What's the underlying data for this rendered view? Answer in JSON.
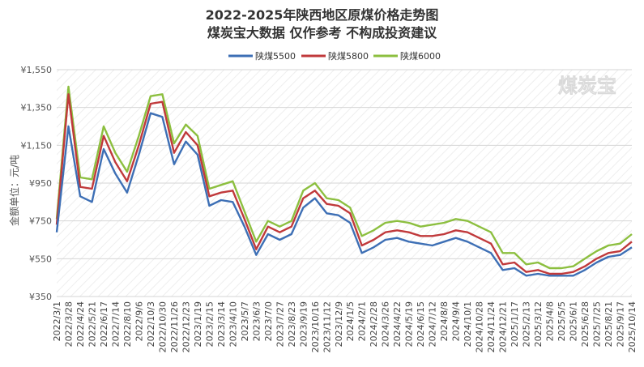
{
  "chart_data": {
    "type": "line",
    "title": "2022-2025年陕西地区原煤价格走势图",
    "subtitle": "煤炭宝大数据 仅作参考 不构成投资建议",
    "watermark": "煤炭宝",
    "ylabel": "金额单位：元/吨",
    "xlabel": "",
    "ylim": [
      350,
      1550
    ],
    "y_ticks": [
      350,
      550,
      750,
      950,
      1150,
      1350,
      1550
    ],
    "y_tick_labels": [
      "¥350",
      "¥550",
      "¥750",
      "¥950",
      "¥1,150",
      "¥1,350",
      "¥1,550"
    ],
    "x_tick_labels": [
      "2022/3/1",
      "2022/3/28",
      "2022/4/24",
      "2022/5/21",
      "2022/6/17",
      "2022/7/14",
      "2022/8/10",
      "2022/9/6",
      "2022/10/3",
      "2022/10/30",
      "2022/11/26",
      "2022/12/23",
      "2023/1/19",
      "2023/2/15",
      "2023/3/14",
      "2023/4/10",
      "2023/5/7",
      "2023/6/3",
      "2023/7/0",
      "2023/7/27",
      "2023/8/23",
      "2023/9/19",
      "2023/10/16",
      "2023/11/12",
      "2023/12/9",
      "2024/1/5",
      "2024/2/1",
      "2024/2/28",
      "2024/3/26",
      "2024/4/22",
      "2024/5/19",
      "2024/6/15",
      "2024/7/12",
      "2024/8/8",
      "2024/9/4",
      "2024/10/1",
      "2024/10/28",
      "2024/11/24",
      "2024/12/21",
      "2025/1/17",
      "2025/2/13",
      "2025/3/12",
      "2025/4/8",
      "2025/5/5",
      "2025/6/1",
      "2025/6/28",
      "2025/7/25",
      "2025/8/21",
      "2025/9/17",
      "2025/10/14"
    ],
    "grid": true,
    "legend_position": "top-center",
    "colors": {
      "陕煤5500": "#3d6fb5",
      "陕煤5800": "#c0393b",
      "陕煤6000": "#8cbf3f"
    },
    "x": [
      "2022/3/1",
      "2022/3/28",
      "2022/4/24",
      "2022/5/21",
      "2022/6/17",
      "2022/7/14",
      "2022/8/10",
      "2022/9/6",
      "2022/10/3",
      "2022/10/30",
      "2022/11/26",
      "2022/12/23",
      "2023/1/19",
      "2023/2/15",
      "2023/3/14",
      "2023/4/10",
      "2023/5/7",
      "2023/6/3",
      "2023/7/0",
      "2023/7/27",
      "2023/8/23",
      "2023/9/19",
      "2023/10/16",
      "2023/11/12",
      "2023/12/9",
      "2024/1/5",
      "2024/2/1",
      "2024/2/28",
      "2024/3/26",
      "2024/4/22",
      "2024/5/19",
      "2024/6/15",
      "2024/7/12",
      "2024/8/8",
      "2024/9/4",
      "2024/10/1",
      "2024/10/28",
      "2024/11/24",
      "2024/12/21",
      "2025/1/17",
      "2025/2/13",
      "2025/3/12",
      "2025/4/8",
      "2025/5/5",
      "2025/6/1",
      "2025/6/28",
      "2025/7/25",
      "2025/8/21",
      "2025/9/17",
      "2025/10/14"
    ],
    "series": [
      {
        "name": "陕煤5500",
        "values": [
          690,
          1250,
          880,
          850,
          1130,
          1000,
          900,
          1100,
          1320,
          1300,
          1050,
          1170,
          1100,
          830,
          860,
          850,
          720,
          570,
          680,
          650,
          680,
          820,
          870,
          790,
          780,
          740,
          580,
          610,
          650,
          660,
          640,
          630,
          620,
          640,
          660,
          640,
          610,
          580,
          490,
          500,
          460,
          470,
          460,
          460,
          460,
          490,
          530,
          560,
          570,
          610
        ]
      },
      {
        "name": "陕煤5800",
        "values": [
          730,
          1420,
          930,
          920,
          1200,
          1060,
          960,
          1150,
          1370,
          1380,
          1110,
          1220,
          1150,
          880,
          900,
          910,
          760,
          600,
          720,
          690,
          720,
          870,
          910,
          840,
          830,
          790,
          620,
          650,
          690,
          700,
          690,
          670,
          670,
          680,
          700,
          690,
          660,
          630,
          520,
          530,
          480,
          490,
          470,
          470,
          480,
          510,
          550,
          580,
          590,
          640
        ]
      },
      {
        "name": "陕煤6000",
        "values": [
          760,
          1460,
          980,
          970,
          1250,
          1110,
          1010,
          1200,
          1410,
          1420,
          1160,
          1260,
          1200,
          920,
          940,
          960,
          800,
          640,
          750,
          720,
          750,
          910,
          950,
          870,
          860,
          820,
          670,
          700,
          740,
          750,
          740,
          720,
          730,
          740,
          760,
          750,
          720,
          690,
          580,
          580,
          520,
          530,
          500,
          500,
          510,
          550,
          590,
          620,
          630,
          680
        ]
      }
    ]
  }
}
